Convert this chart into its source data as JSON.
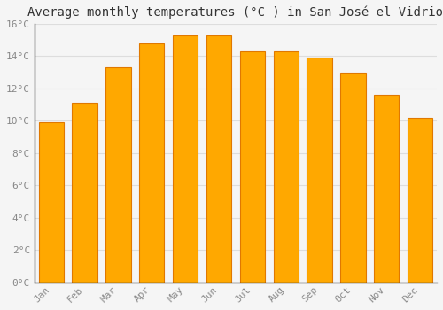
{
  "title": "Average monthly temperatures (°C ) in San José el Vidrio",
  "months": [
    "Jan",
    "Feb",
    "Mar",
    "Apr",
    "May",
    "Jun",
    "Jul",
    "Aug",
    "Sep",
    "Oct",
    "Nov",
    "Dec"
  ],
  "values": [
    9.9,
    11.1,
    13.3,
    14.8,
    15.3,
    15.3,
    14.3,
    14.3,
    13.9,
    13.0,
    11.6,
    10.2
  ],
  "bar_color": "#FFA800",
  "bar_edge_color": "#E07800",
  "ylim": [
    0,
    16
  ],
  "ytick_step": 2,
  "background_color": "#f5f5f5",
  "plot_bg_color": "#f5f5f5",
  "grid_color": "#dddddd",
  "title_fontsize": 10,
  "tick_fontsize": 8,
  "tick_color": "#888888",
  "font_family": "monospace"
}
